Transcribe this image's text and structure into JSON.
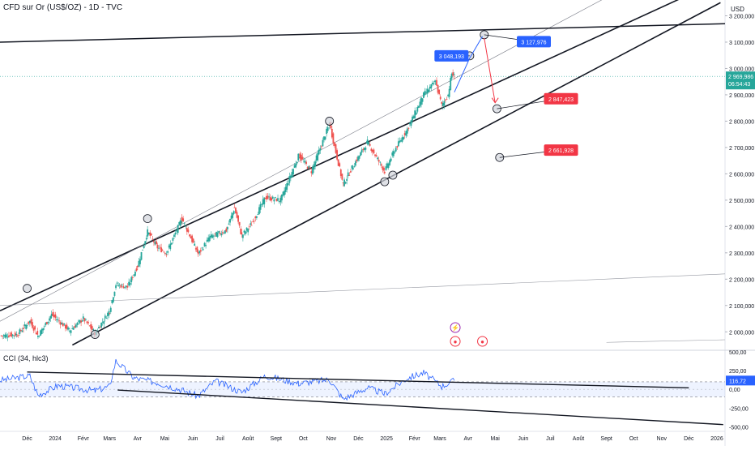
{
  "header": {
    "title": "CFD sur Or (US$/OZ) - 1D - TVC",
    "currency": "USD"
  },
  "indicator": {
    "label": "CCI (34, hlc3)",
    "value": "116,72",
    "ticks": [
      "500,00",
      "250,00",
      "0,00",
      "-250,00",
      "-500,00"
    ]
  },
  "colors": {
    "up": "#26a69a",
    "down": "#ef5350",
    "blue": "#2962ff",
    "red": "#f23645",
    "line": "#131722",
    "price_badge": "#26a69a"
  },
  "price_axis": {
    "ticks": [
      "3 200,000",
      "3 100,000",
      "3 000,000",
      "2 900,000",
      "2 800,000",
      "2 700,000",
      "2 600,000",
      "2 500,000",
      "2 400,000",
      "2 300,000",
      "2 200,000",
      "2 100,000",
      "2 000,000"
    ]
  },
  "current_price": {
    "value": "2 969,986",
    "countdown": "06:54:43"
  },
  "time_axis": [
    "Déc",
    "2024",
    "Févr",
    "Mars",
    "Avr",
    "Mai",
    "Juin",
    "Juil",
    "Août",
    "Sept",
    "Oct",
    "Nov",
    "Déc",
    "2025",
    "Févr",
    "Mars",
    "Avr",
    "Mai",
    "Juin",
    "Juil",
    "Août",
    "Sept",
    "Oct",
    "Nov",
    "Déc",
    "2026"
  ],
  "labels": [
    {
      "text": "3 048,193",
      "color": "blue"
    },
    {
      "text": "3 127,976",
      "color": "blue"
    },
    {
      "text": "2 847,423",
      "color": "red"
    },
    {
      "text": "2 661,928",
      "color": "red"
    }
  ],
  "chart_data": {
    "type": "candlestick",
    "title": "CFD sur Or (US$/OZ) - 1D - TVC",
    "ylim": [
      1930,
      3260
    ],
    "x_start": "2023-11-01",
    "x_end": "2026-01-10",
    "close_points": [
      [
        "2023-11-01",
        1985
      ],
      [
        "2023-11-20",
        1990
      ],
      [
        "2023-12-04",
        2040
      ],
      [
        "2023-12-13",
        1985
      ],
      [
        "2023-12-28",
        2065
      ],
      [
        "2024-01-17",
        2005
      ],
      [
        "2024-02-01",
        2050
      ],
      [
        "2024-02-14",
        1995
      ],
      [
        "2024-03-01",
        2080
      ],
      [
        "2024-03-08",
        2180
      ],
      [
        "2024-03-21",
        2170
      ],
      [
        "2024-04-01",
        2250
      ],
      [
        "2024-04-12",
        2380
      ],
      [
        "2024-04-23",
        2320
      ],
      [
        "2024-05-03",
        2300
      ],
      [
        "2024-05-20",
        2430
      ],
      [
        "2024-06-07",
        2295
      ],
      [
        "2024-06-20",
        2360
      ],
      [
        "2024-07-08",
        2385
      ],
      [
        "2024-07-17",
        2470
      ],
      [
        "2024-07-25",
        2365
      ],
      [
        "2024-08-05",
        2410
      ],
      [
        "2024-08-20",
        2510
      ],
      [
        "2024-09-06",
        2500
      ],
      [
        "2024-09-26",
        2670
      ],
      [
        "2024-10-10",
        2610
      ],
      [
        "2024-10-30",
        2790
      ],
      [
        "2024-11-14",
        2560
      ],
      [
        "2024-11-25",
        2630
      ],
      [
        "2024-12-11",
        2720
      ],
      [
        "2024-12-30",
        2610
      ],
      [
        "2025-01-10",
        2690
      ],
      [
        "2025-01-24",
        2770
      ],
      [
        "2025-02-11",
        2900
      ],
      [
        "2025-02-24",
        2950
      ],
      [
        "2025-03-03",
        2860
      ],
      [
        "2025-03-10",
        2900
      ],
      [
        "2025-03-14",
        2980
      ],
      [
        "2025-03-17",
        2970
      ]
    ],
    "cci": {
      "ylim": [
        -560,
        520
      ],
      "points": [
        [
          "2023-11-01",
          120
        ],
        [
          "2023-12-04",
          180
        ],
        [
          "2023-12-13",
          -80
        ],
        [
          "2024-01-04",
          50
        ],
        [
          "2024-02-14",
          -20
        ],
        [
          "2024-03-01",
          40
        ],
        [
          "2024-03-08",
          380
        ],
        [
          "2024-03-28",
          150
        ],
        [
          "2024-04-23",
          90
        ],
        [
          "2024-05-20",
          -10
        ],
        [
          "2024-06-07",
          -90
        ],
        [
          "2024-06-26",
          110
        ],
        [
          "2024-07-25",
          -40
        ],
        [
          "2024-08-20",
          180
        ],
        [
          "2024-09-26",
          80
        ],
        [
          "2024-10-30",
          130
        ],
        [
          "2024-11-14",
          -130
        ],
        [
          "2024-12-11",
          20
        ],
        [
          "2024-12-30",
          -60
        ],
        [
          "2025-01-24",
          150
        ],
        [
          "2025-02-11",
          220
        ],
        [
          "2025-03-03",
          40
        ],
        [
          "2025-03-17",
          116.72
        ]
      ]
    }
  }
}
